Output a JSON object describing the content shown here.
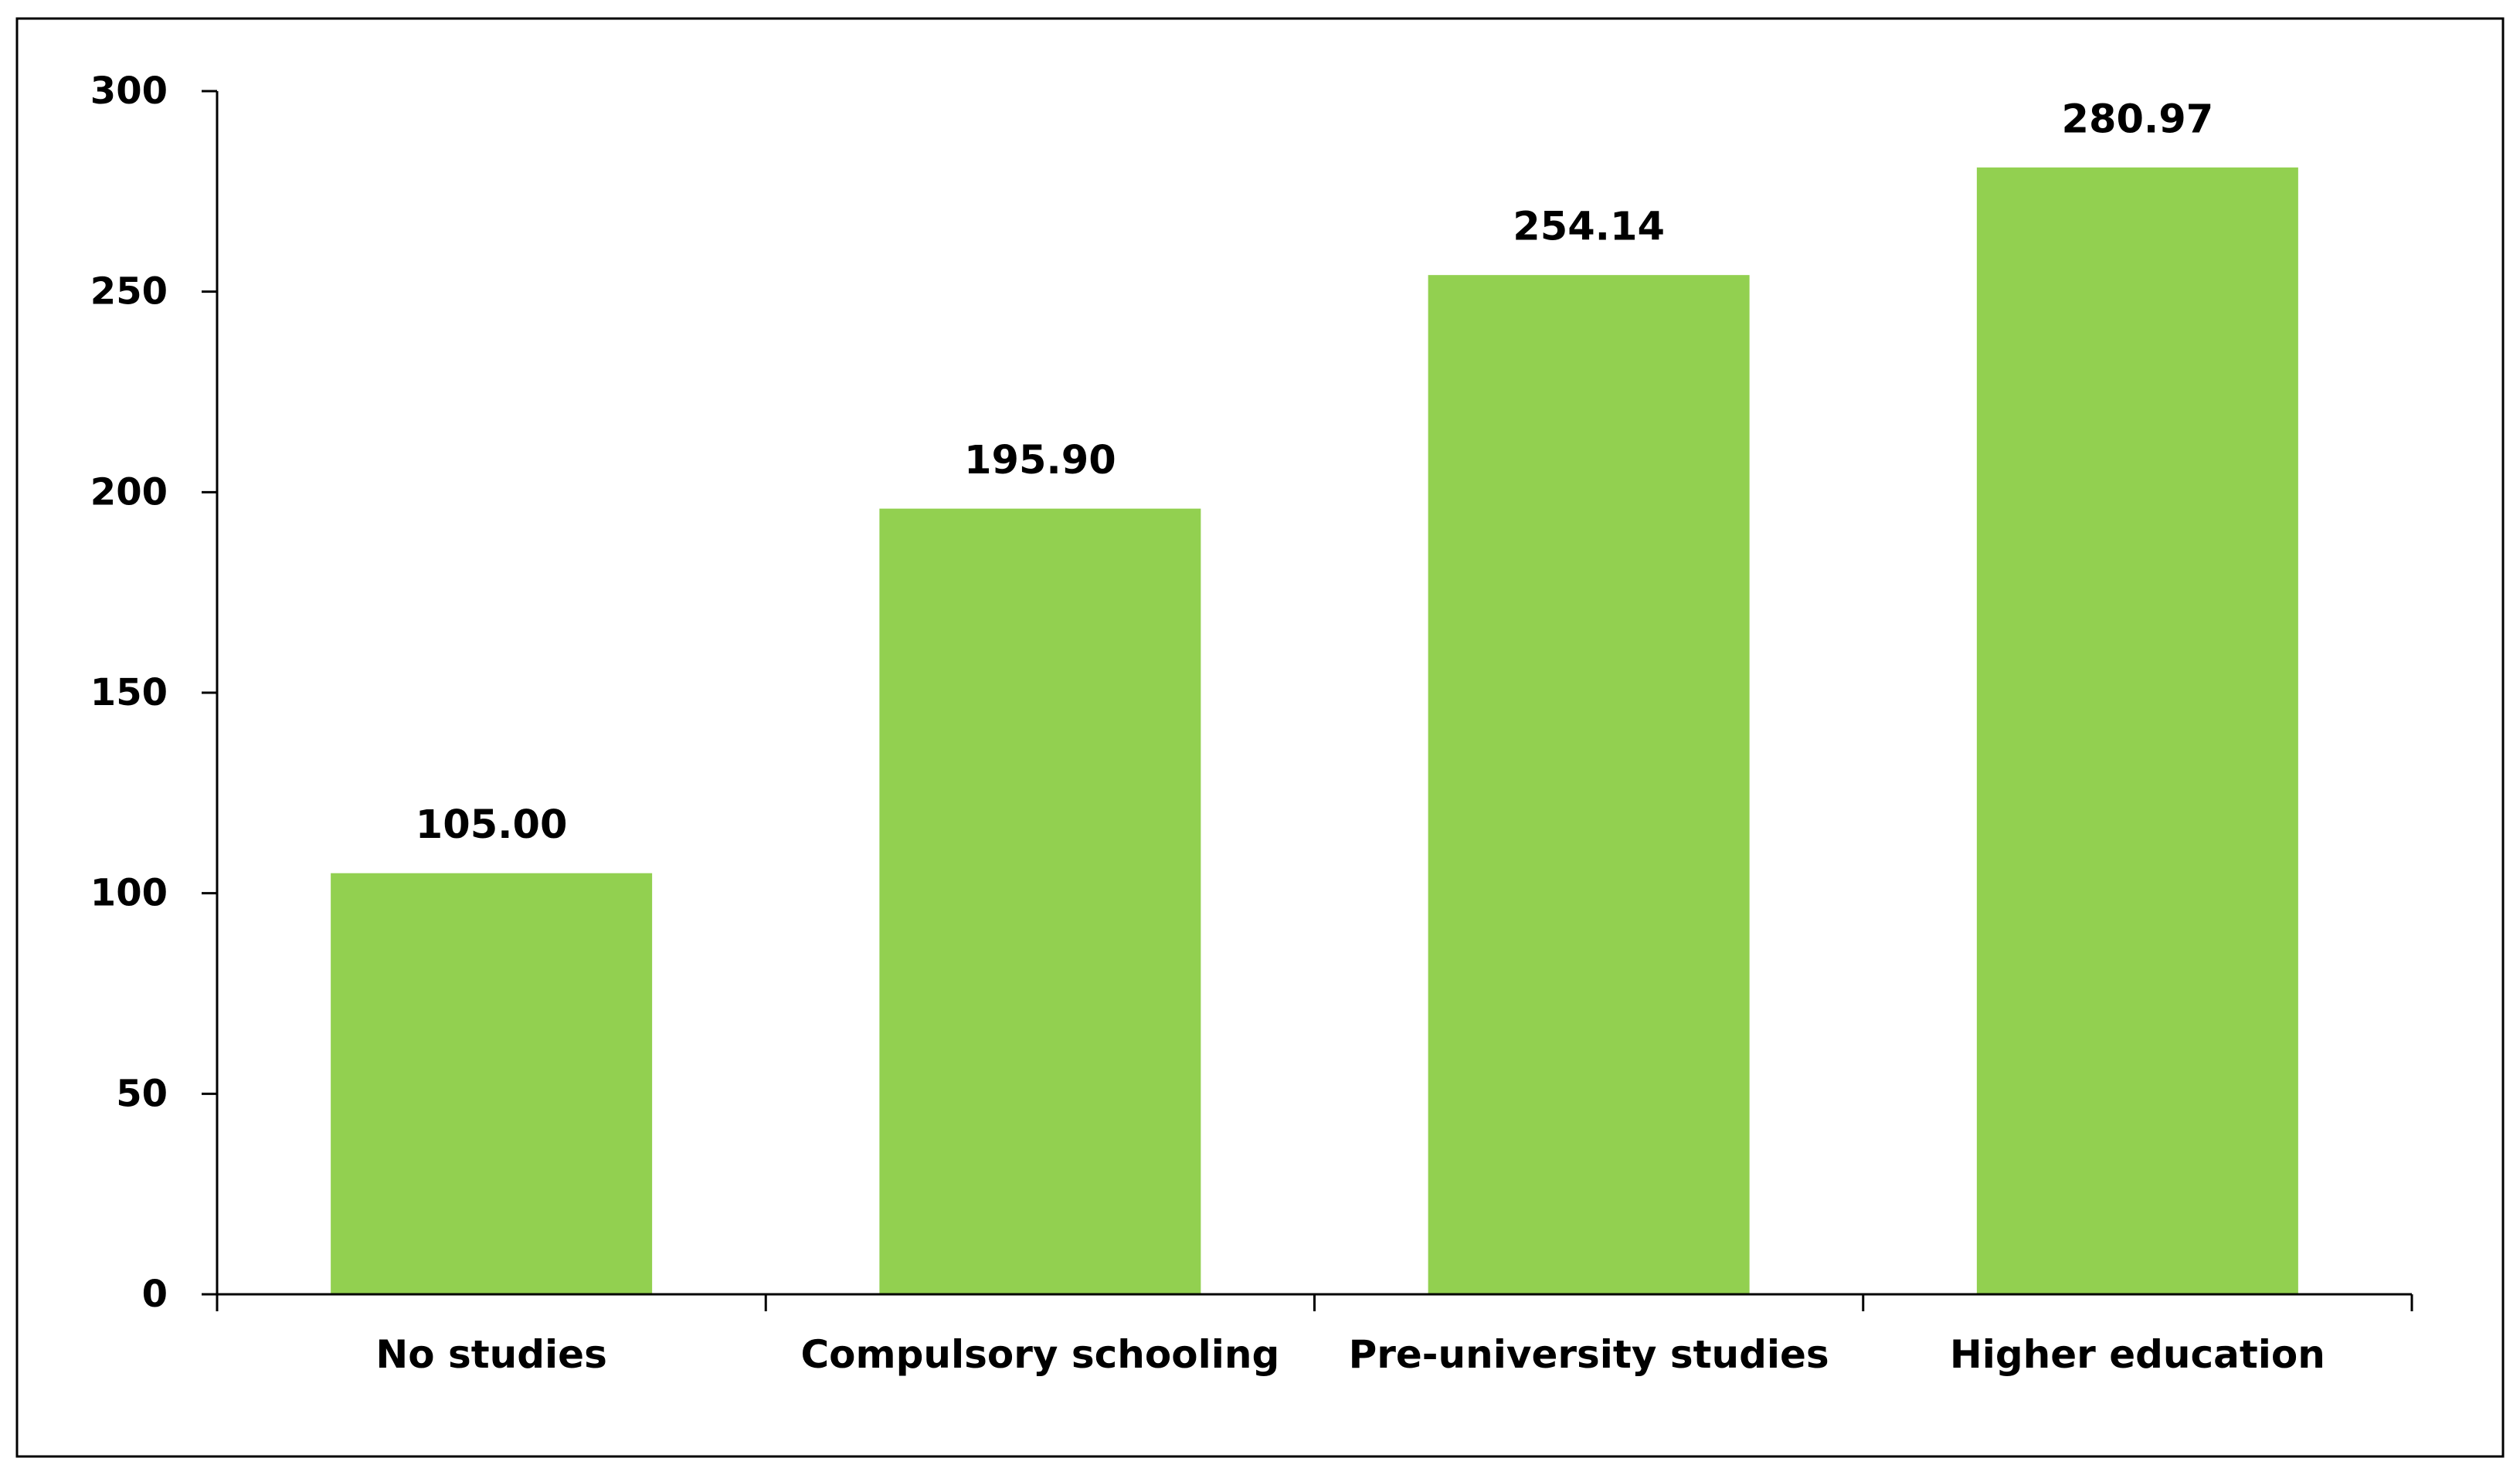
{
  "chart_data": {
    "type": "bar",
    "title": "",
    "xlabel": "",
    "ylabel": "",
    "categories": [
      "No studies",
      "Compulsory schooling",
      "Pre-university studies",
      "Higher education"
    ],
    "values": [
      105.0,
      195.9,
      254.14,
      280.97
    ],
    "data_labels": [
      "105.00",
      "195.90",
      "254.14",
      "280.97"
    ],
    "ylim": [
      0,
      300
    ],
    "y_ticks": [
      0,
      50,
      100,
      150,
      200,
      250,
      300
    ],
    "y_tick_labels": [
      "0",
      "50",
      "100",
      "150",
      "200",
      "250",
      "300"
    ],
    "grid": false,
    "legend": "none",
    "colors": {
      "bar": "#92d050",
      "axis": "#000000",
      "border": "#000000",
      "text": "#000000"
    }
  }
}
